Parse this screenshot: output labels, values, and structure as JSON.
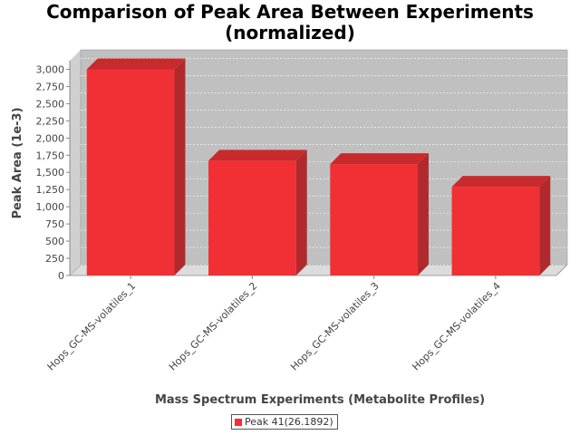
{
  "chart_data": {
    "type": "bar",
    "title_line1": "Comparison of Peak Area Between Experiments",
    "title_line2": "(normalized)",
    "xlabel": "Mass Spectrum Experiments (Metabolite Profiles)",
    "ylabel": "Peak Area (1e-3)",
    "categories": [
      "Hops_GC-MS-volatiles_1",
      "Hops_GC-MS-volatiles_2",
      "Hops_GC-MS-volatiles_3",
      "Hops_GC-MS-volatiles_4"
    ],
    "series": [
      {
        "name": "Peak 41(26.1892)",
        "values": [
          3000,
          1670,
          1620,
          1290
        ],
        "color": "#f03034"
      }
    ],
    "ylim": [
      0,
      3125
    ],
    "yticks": [
      "0",
      "250",
      "500",
      "750",
      "1,000",
      "1,250",
      "1,500",
      "1,750",
      "2,000",
      "2,250",
      "2,500",
      "2,750",
      "3,000"
    ],
    "ytick_values": [
      0,
      250,
      500,
      750,
      1000,
      1250,
      1500,
      1750,
      2000,
      2250,
      2500,
      2750,
      3000
    ],
    "grid": true,
    "legend_position": "bottom-center",
    "plot_background": "#c0c0c0"
  }
}
